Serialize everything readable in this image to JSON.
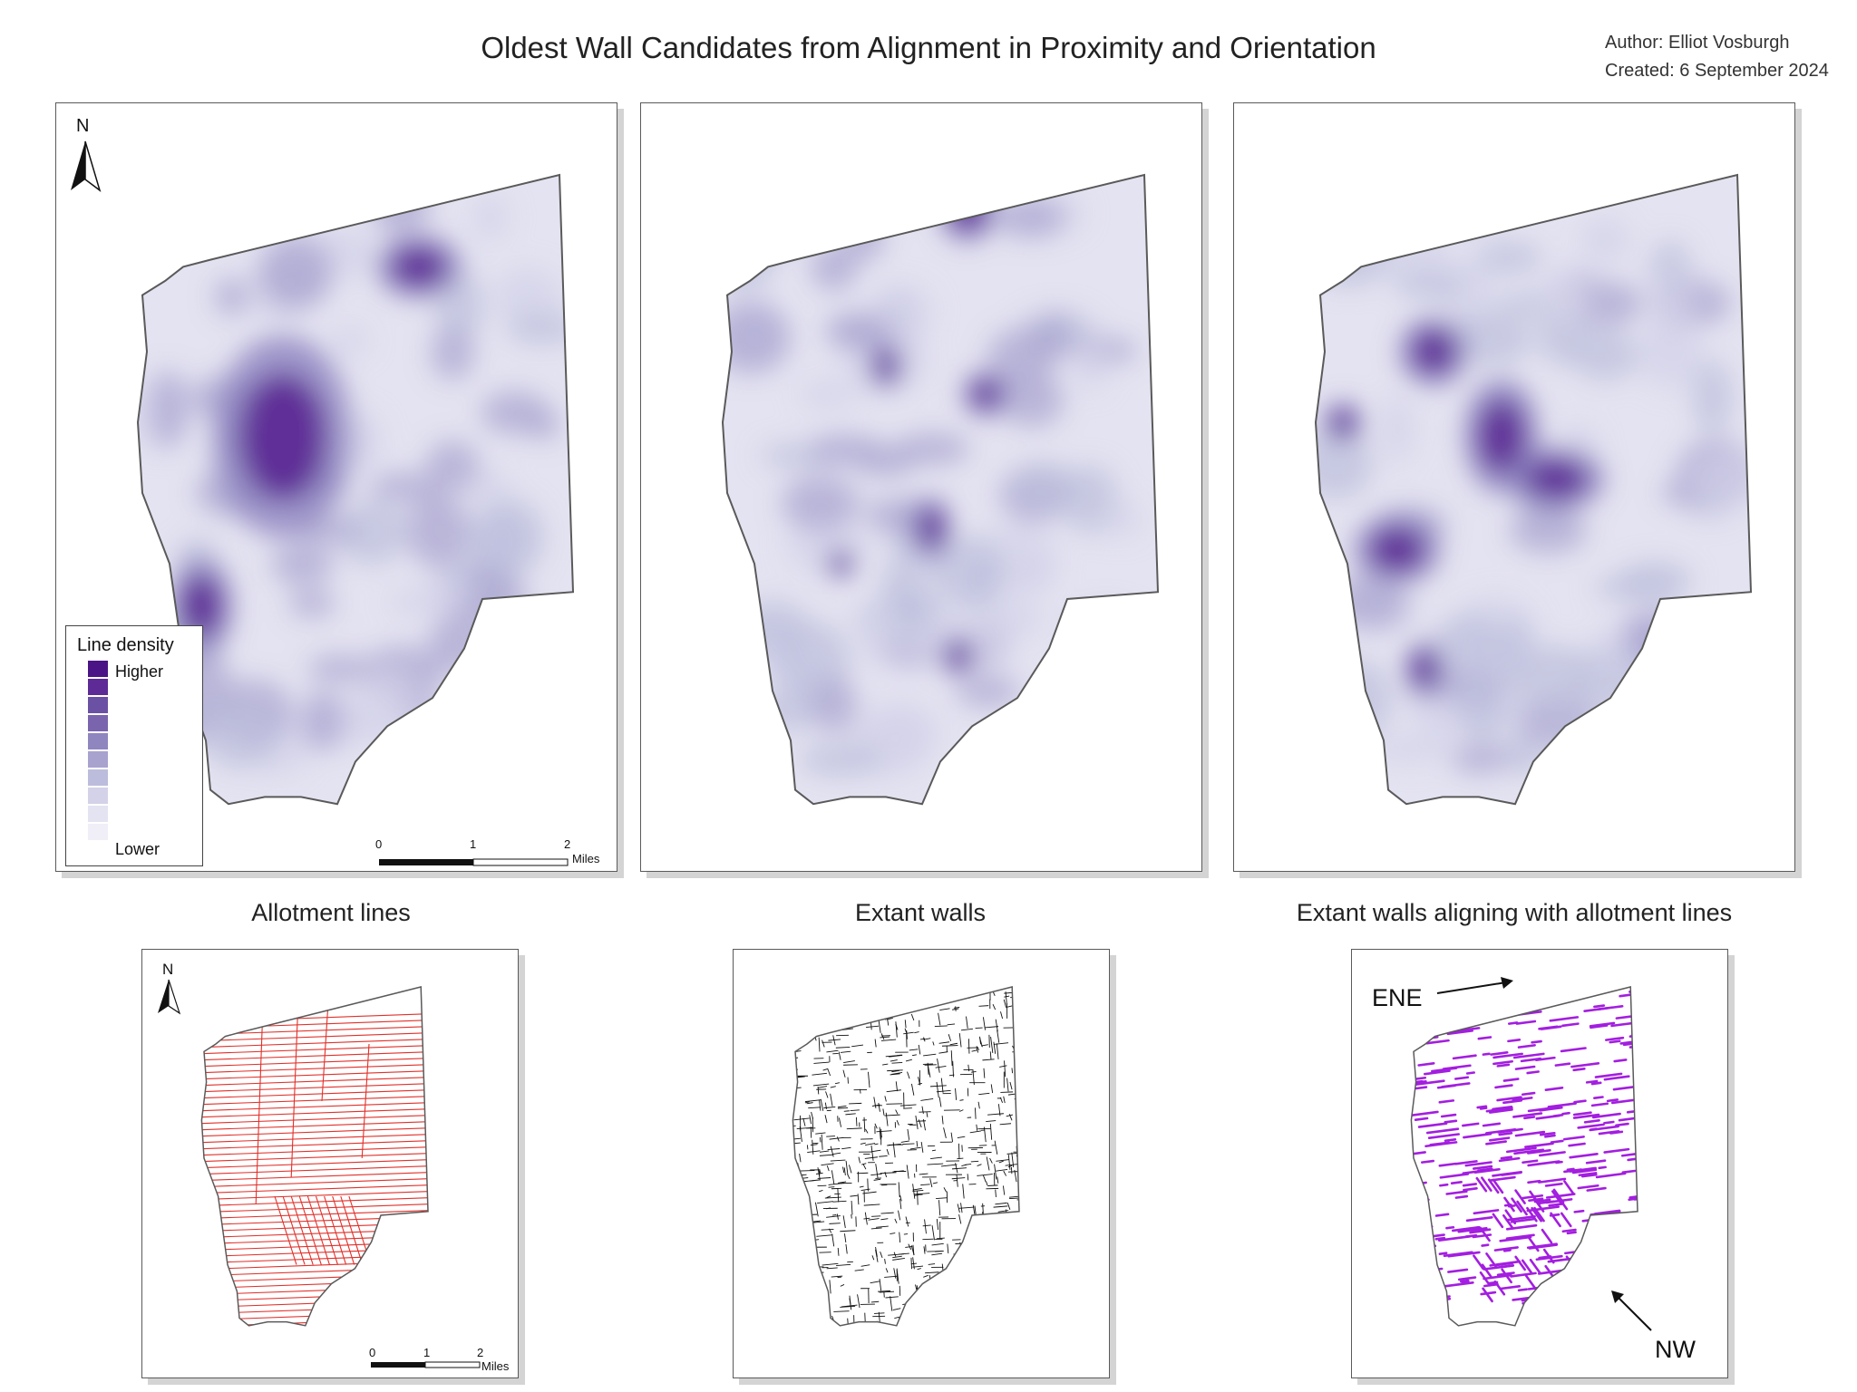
{
  "title": "Oldest Wall Candidates from Alignment in Proximity and Orientation",
  "author": "Author: Elliot Vosburgh",
  "created": "Created: 6 September 2024",
  "legend": {
    "title": "Line density",
    "high": "Higher",
    "low": "Lower",
    "ramp": [
      "#4a1486",
      "#5d2a96",
      "#6a51a3",
      "#7a64ad",
      "#8f86c0",
      "#a8a2cf",
      "#bcbddc",
      "#d3d2e8",
      "#e4e3f1",
      "#f0eff8"
    ]
  },
  "scalebar": {
    "ticks": [
      "0",
      "1",
      "2"
    ],
    "unit": "Miles"
  },
  "north_label": "N",
  "captions": {
    "allotment": "Allotment lines",
    "extant": "Extant walls",
    "aligning": "Extant walls aligning with allotment lines"
  },
  "direction_labels": {
    "ene": "ENE",
    "nw": "NW"
  },
  "colors": {
    "density_dark": "#4a1486",
    "allotment_lines": "#e0302a",
    "extant_walls": "#111111",
    "aligned_walls": "#a31ee0",
    "outline": "#5a5a5a"
  }
}
